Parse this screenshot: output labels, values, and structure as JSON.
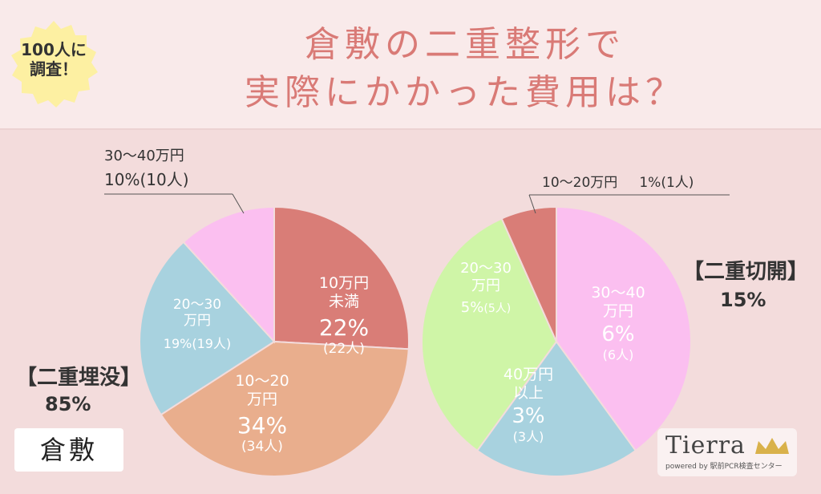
{
  "header": {
    "badge_line1": "100人に",
    "badge_line2": "調査！",
    "title_line1": "倉敷の二重整形で",
    "title_line2": "実際にかかった費用は？"
  },
  "location": "倉敷",
  "logo": {
    "name": "Tierra",
    "tagline": "powered by 駅前PCR検査センター"
  },
  "colors": {
    "red": "#d97d77",
    "peach": "#e9ae8d",
    "blue": "#a8d2df",
    "pink": "#fbbff0",
    "green": "#cff5a7",
    "title": "#d97a76",
    "badge": "#fdf0a2"
  },
  "chart_data": [
    {
      "type": "pie",
      "title": "【二重埋没】",
      "share": "85%",
      "slices": [
        {
          "name_line1": "10万円",
          "name_line2": "未満",
          "value": 22,
          "pct": "22%",
          "count": "(22人)",
          "color": "#d97d77"
        },
        {
          "name_line1": "10～20",
          "name_line2": "万円",
          "value": 34,
          "pct": "34%",
          "count": "(34人)",
          "color": "#e9ae8d"
        },
        {
          "name_line1": "20～30",
          "name_line2": "万円",
          "value": 19,
          "pct": "19%",
          "count": "(19人)",
          "color": "#a8d2df"
        },
        {
          "name_line1": "30～40万円",
          "name_line2": "",
          "value": 10,
          "pct": "10%",
          "count": "(10人)",
          "color": "#fbbff0"
        }
      ]
    },
    {
      "type": "pie",
      "title": "【二重切開】",
      "share": "15%",
      "slices": [
        {
          "name_line1": "30～40",
          "name_line2": "万円",
          "value": 6,
          "pct": "6%",
          "count": "(6人)",
          "color": "#fbbff0"
        },
        {
          "name_line1": "40万円",
          "name_line2": "以上",
          "value": 3,
          "pct": "3%",
          "count": "(3人)",
          "color": "#a8d2df"
        },
        {
          "name_line1": "20～30",
          "name_line2": "万円",
          "value": 5,
          "pct": "5%",
          "count": "(5人)",
          "color": "#cff5a7"
        },
        {
          "name_line1": "10～20万円",
          "name_line2": "",
          "value": 1,
          "pct": "1%",
          "count": "(1人)",
          "color": "#d97d77"
        }
      ]
    }
  ]
}
